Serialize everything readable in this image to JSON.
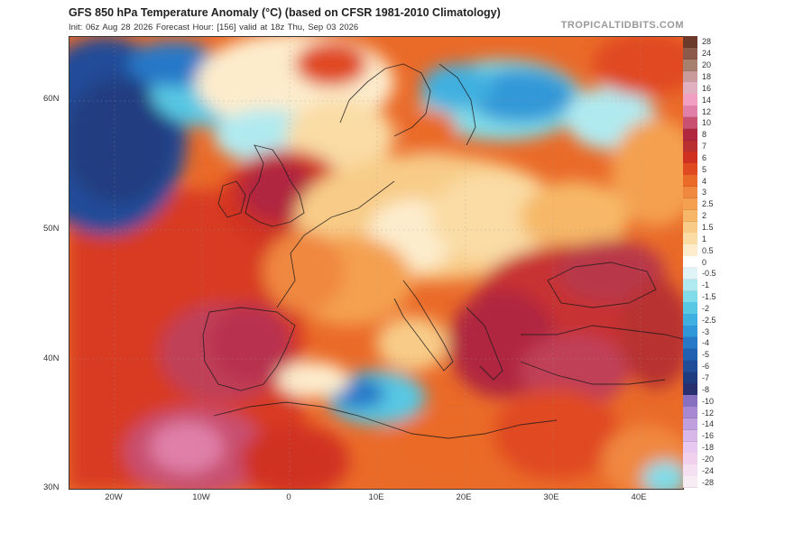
{
  "header": {
    "title": "GFS 850 hPa Temperature Anomaly (°C) (based on CFSR 1981-2010 Climatology)",
    "subtitle": "Init: 06z Aug 28 2026   Forecast Hour: [156]   valid at 18z Thu, Sep 03 2026",
    "brand": "TROPICALTIDBITS.COM"
  },
  "axes": {
    "lat_labels": [
      "60N",
      "50N",
      "40N",
      "30N"
    ],
    "lon_labels": [
      "20W",
      "10W",
      "0",
      "10E",
      "20E",
      "30E",
      "40E"
    ]
  },
  "colorbar": {
    "labels": [
      "28",
      "24",
      "20",
      "18",
      "16",
      "14",
      "12",
      "10",
      "8",
      "7",
      "6",
      "5",
      "4",
      "3",
      "2.5",
      "2",
      "1.5",
      "1",
      "0.5",
      "0",
      "-0.5",
      "-1",
      "-1.5",
      "-2",
      "-2.5",
      "-3",
      "-4",
      "-5",
      "-6",
      "-7",
      "-8",
      "-10",
      "-12",
      "-14",
      "-16",
      "-18",
      "-20",
      "-24",
      "-28"
    ],
    "colors": [
      "#6b3a2a",
      "#8b5a4a",
      "#a88070",
      "#c89a9a",
      "#e0b0c0",
      "#f0a0c0",
      "#e080a8",
      "#c85070",
      "#b02840",
      "#b83030",
      "#d03020",
      "#e04a20",
      "#ea6a28",
      "#f08840",
      "#f4a050",
      "#f6b868",
      "#f8cc88",
      "#fadca4",
      "#fdeccc",
      "#ffffff",
      "#e0f4f8",
      "#b0eaf0",
      "#80dce8",
      "#58c8e4",
      "#40b0e0",
      "#3098d8",
      "#2878c8",
      "#2060b0",
      "#204c98",
      "#203c80",
      "#283070",
      "#8870c0",
      "#a888d0",
      "#c0a0dc",
      "#d8b8e8",
      "#e8c8f0",
      "#f0d0ec",
      "#f4e0f0",
      "#f8ecf4"
    ]
  }
}
